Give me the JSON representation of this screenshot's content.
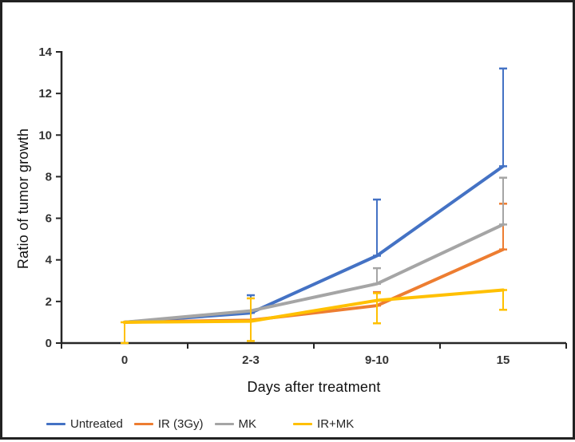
{
  "figure": {
    "ylabel": "Ratio of tumor growth",
    "xlabel": "Days after treatment"
  },
  "chart_data": {
    "type": "line",
    "title": "",
    "xlabel": "Days after treatment",
    "ylabel": "Ratio of tumor growth",
    "categories": [
      "0",
      "2-3",
      "9-10",
      "15"
    ],
    "ylim": [
      0,
      14
    ],
    "ytick_step": 2,
    "grid": false,
    "legend_position": "bottom",
    "axis_color": "#262626",
    "tick_label_color": "#333333",
    "series": [
      {
        "name": "Untreated",
        "color": "#4472C4",
        "values": [
          1.0,
          1.45,
          4.2,
          8.5
        ],
        "error_bars": [
          {
            "x": 1,
            "low": 1.45,
            "high": 2.3
          },
          {
            "x": 2,
            "low": 4.2,
            "high": 6.9
          },
          {
            "x": 3,
            "low": 8.5,
            "high": 13.2
          }
        ]
      },
      {
        "name": "IR (3Gy)",
        "color": "#ED7D31",
        "values": [
          1.0,
          1.1,
          1.8,
          4.5
        ],
        "error_bars": [
          {
            "x": 2,
            "low": 1.8,
            "high": 2.45
          },
          {
            "x": 3,
            "low": 4.5,
            "high": 6.7
          }
        ]
      },
      {
        "name": "MK",
        "color": "#A5A5A5",
        "values": [
          1.0,
          1.55,
          2.85,
          5.7
        ],
        "error_bars": [
          {
            "x": 2,
            "low": 2.85,
            "high": 3.6
          },
          {
            "x": 3,
            "low": 5.7,
            "high": 7.95
          }
        ]
      },
      {
        "name": "IR+MK",
        "color": "#FFC000",
        "values": [
          1.0,
          1.05,
          2.05,
          2.55
        ],
        "error_bars": [
          {
            "x": 0,
            "low": 0.0,
            "high": 1.0
          },
          {
            "x": 1,
            "low": 0.1,
            "high": 2.15
          },
          {
            "x": 2,
            "low": 0.95,
            "high": 2.4
          },
          {
            "x": 3,
            "low": 1.6,
            "high": 2.55
          }
        ]
      }
    ]
  }
}
